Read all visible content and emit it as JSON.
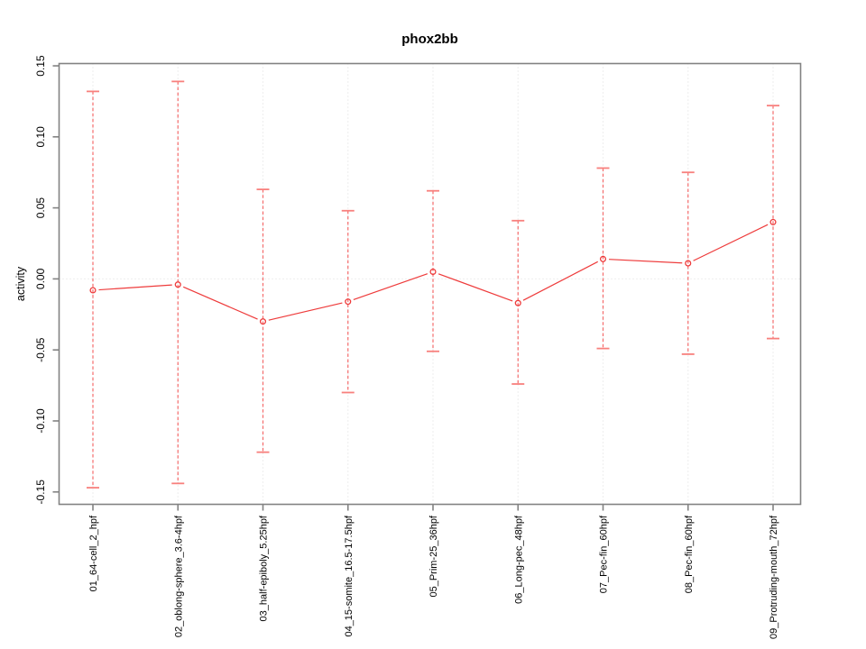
{
  "window": {
    "title": "phox2bb activity plot"
  },
  "chart_data": {
    "type": "line",
    "title": "phox2bb",
    "xlabel": "",
    "ylabel": "activity",
    "ylim": [
      -0.159,
      0.152
    ],
    "ytick_values": [
      -0.15,
      -0.1,
      -0.05,
      0.0,
      0.05,
      0.1,
      0.15
    ],
    "ytick_labels": [
      "-0.15",
      "-0.10",
      "-0.05",
      "0.00",
      "0.05",
      "0.10",
      "0.15"
    ],
    "legend_position": "none",
    "grid": {
      "vertical_at_categories": true,
      "horizontal_at_zero": true,
      "style": "dotted"
    },
    "categories": [
      "01_64-cell_2_hpf",
      "02_oblong-sphere_3.6-4hpf",
      "03_half-epiboly_5.25hpf",
      "04_15-somite_16.5-17.5hpf",
      "05_Prim-25_36hpf",
      "06_Long-pec_48hpf",
      "07_Pec-fin_60hpf",
      "08_Pec-fin_60hpf",
      "09_Protruding-mouth_72hpf"
    ],
    "series": [
      {
        "name": "phox2bb activity",
        "marker": "open-circle",
        "line_style": "solid-with-point-gaps",
        "error_bar_style": "dashed-with-solid-caps",
        "values": [
          -0.008,
          -0.004,
          -0.03,
          -0.016,
          0.005,
          -0.017,
          0.014,
          0.011,
          0.04
        ],
        "error_upper": [
          0.132,
          0.139,
          0.063,
          0.048,
          0.062,
          0.041,
          0.078,
          0.075,
          0.122
        ],
        "error_lower": [
          -0.147,
          -0.144,
          -0.122,
          -0.08,
          -0.051,
          -0.074,
          -0.049,
          -0.053,
          -0.042
        ]
      }
    ],
    "colors": {
      "series": "#ee3b3b",
      "error_bar": "#f56b6b",
      "error_cap": "#f8807d",
      "grid": "#dcdcdc",
      "axis": "#828282",
      "text": "#000000",
      "background": "#ffffff"
    }
  }
}
